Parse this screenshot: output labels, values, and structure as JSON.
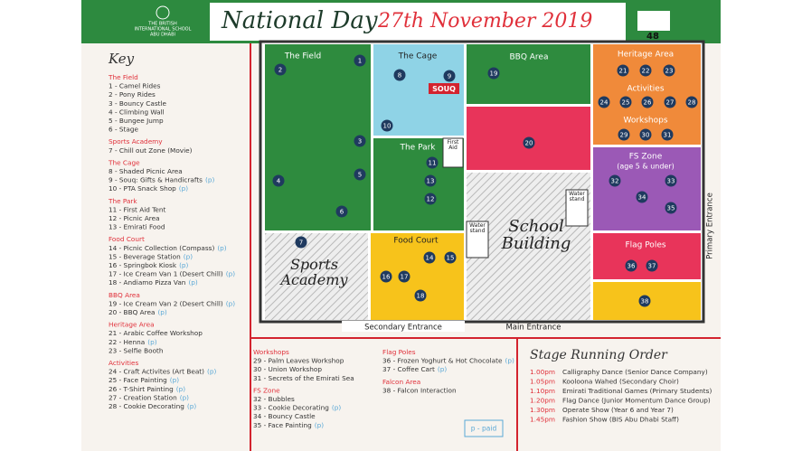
{
  "header": {
    "school": [
      "THE BRITISH",
      "INTERNATIONAL SCHOOL",
      "ABU DHABI"
    ],
    "title": "National Day",
    "date": "27th November 2019",
    "logo": "48"
  },
  "key": {
    "title": "Key",
    "groups": [
      {
        "name": "The Field",
        "items": [
          {
            "label": "1 - Camel Rides"
          },
          {
            "label": "2 - Pony Rides"
          },
          {
            "label": "3 - Bouncy Castle"
          },
          {
            "label": "4 - Climbing Wall"
          },
          {
            "label": "5 - Bungee Jump"
          },
          {
            "label": "6 - Stage"
          }
        ]
      },
      {
        "name": "Sports Academy",
        "items": [
          {
            "label": "7 - Chill out Zone (Movie)"
          }
        ]
      },
      {
        "name": "The Cage",
        "items": [
          {
            "label": "8 - Shaded Picnic Area"
          },
          {
            "label": "9 - Souq: Gifts & Handicrafts",
            "paid": "(p)"
          },
          {
            "label": "10 - PTA Snack Shop",
            "paid": "(p)"
          }
        ]
      },
      {
        "name": "The Park",
        "items": [
          {
            "label": "11 - First Aid Tent"
          },
          {
            "label": "12 - Picnic Area"
          },
          {
            "label": "13 - Emirati Food"
          }
        ]
      },
      {
        "name": "Food Court",
        "items": [
          {
            "label": "14 - Picnic Collection (Compass)",
            "paid": "(p)"
          },
          {
            "label": "15 - Beverage Station",
            "paid": "(p)"
          },
          {
            "label": "16 - Springbok Kiosk",
            "paid": "(p)"
          },
          {
            "label": "17 - Ice Cream Van 1 (Desert Chill)",
            "paid": "(p)"
          },
          {
            "label": "18 - Andiamo Pizza Van",
            "paid": "(p)"
          }
        ]
      },
      {
        "name": "BBQ Area",
        "items": [
          {
            "label": "19 - Ice Cream Van 2 (Desert Chill)",
            "paid": "(p)"
          },
          {
            "label": "20 - BBQ Area",
            "paid": "(p)"
          }
        ]
      },
      {
        "name": "Heritage Area",
        "items": [
          {
            "label": "21 - Arabic Coffee Workshop"
          },
          {
            "label": "22 - Henna",
            "paid": "(p)"
          },
          {
            "label": "23 - Selfie Booth"
          }
        ]
      },
      {
        "name": "Activities",
        "items": [
          {
            "label": "24 - Craft Activites (Art Beat)",
            "paid": "(p)"
          },
          {
            "label": "25 - Face Painting",
            "paid": "(p)"
          },
          {
            "label": "26 - T-Shirt Painting",
            "paid": "(p)"
          },
          {
            "label": "27 - Creation Station",
            "paid": "(p)"
          },
          {
            "label": "28 - Cookie Decorating",
            "paid": "(p)"
          }
        ]
      },
      {
        "name": "Workshops",
        "items": [
          {
            "label": "29 - Palm Leaves Workshop"
          },
          {
            "label": "30 - Union Workshop"
          },
          {
            "label": "31 - Secrets of the Emirati Sea"
          }
        ]
      },
      {
        "name": "FS Zone",
        "items": [
          {
            "label": "32 - Bubbles"
          },
          {
            "label": "33 - Cookie Decorating",
            "paid": "(p)"
          },
          {
            "label": "34 - Bouncy Castle"
          },
          {
            "label": "35 - Face Painting",
            "paid": "(p)"
          }
        ]
      },
      {
        "name": "Flag Poles",
        "items": [
          {
            "label": "36 - Frozen Yoghurt & Hot Chocolate",
            "paid": "(p)"
          },
          {
            "label": "37 - Coffee Cart",
            "paid": "(p)"
          }
        ]
      },
      {
        "name": "Falcon Area",
        "items": [
          {
            "label": "38 - Falcon Interaction"
          }
        ]
      }
    ],
    "paid_note": "p - paid"
  },
  "map": {
    "zones": [
      {
        "name": "The Field",
        "markers": [
          "1",
          "2",
          "3",
          "4",
          "5",
          "6"
        ]
      },
      {
        "name": "The Cage",
        "markers": [
          "8",
          "9",
          "10"
        ]
      },
      {
        "name": "The Park",
        "markers": [
          "11",
          "12",
          "13"
        ]
      },
      {
        "name": "BBQ Area",
        "markers": [
          "19"
        ]
      },
      {
        "markers": [
          "20"
        ]
      },
      {
        "name": "Heritage Area",
        "markers": [
          "21",
          "22",
          "23"
        ]
      },
      {
        "name": "Activities",
        "markers": [
          "24",
          "25",
          "26",
          "27",
          "28"
        ]
      },
      {
        "name": "Workshops",
        "markers": [
          "29",
          "30",
          "31"
        ]
      },
      {
        "name": "FS Zone",
        "sub": "(age 5 & under)",
        "markers": [
          "32",
          "33",
          "34",
          "35"
        ]
      },
      {
        "name": "Flag Poles",
        "markers": [
          "36",
          "37"
        ]
      },
      {
        "markers": [
          "38"
        ]
      },
      {
        "name": "Food Court",
        "markers": [
          "14",
          "15",
          "16",
          "17",
          "18"
        ]
      },
      {
        "name": "Sports Academy",
        "markers": [
          "7"
        ]
      }
    ],
    "signs": {
      "souq": "SOUQ",
      "first_aid": "First Aid",
      "water_1": "Water stand",
      "water_2": "Water stand",
      "building": "School Building"
    },
    "entrances": {
      "secondary": "Secondary Entrance",
      "main": "Main Entrance",
      "primary": "Primary Entrance"
    }
  },
  "stage": {
    "title": "Stage Running Order",
    "items": [
      {
        "time": "1.00pm",
        "act": "Calligraphy Dance (Senior Dance Company)"
      },
      {
        "time": "1.05pm",
        "act": "Kooloona Wahed (Secondary Choir)"
      },
      {
        "time": "1.10pm",
        "act": "Emirati Traditional Games (Primary Students)"
      },
      {
        "time": "1.20pm",
        "act": "Flag Dance (Junior Momentum Dance Group)"
      },
      {
        "time": "1.30pm",
        "act": "Operate Show (Year 6 and Year 7)"
      },
      {
        "time": "1.45pm",
        "act": "Fashion Show (BIS Abu Dhabi Staff)"
      }
    ]
  }
}
